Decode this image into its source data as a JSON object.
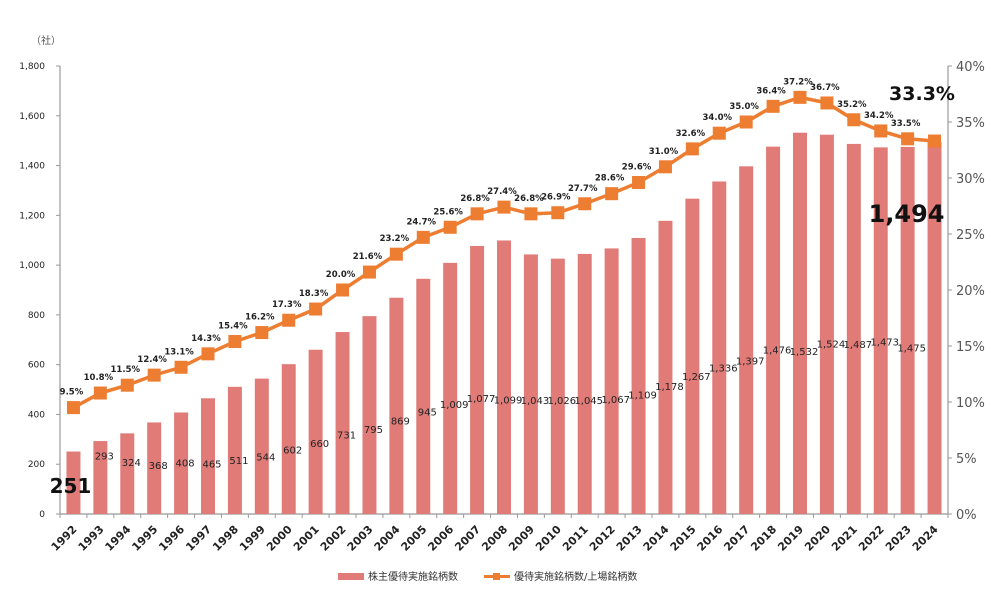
{
  "chart_data": {
    "type": "bar+line",
    "unit_label": "（社）",
    "categories": [
      "1992",
      "1993",
      "1994",
      "1995",
      "1996",
      "1997",
      "1998",
      "1999",
      "2000",
      "2001",
      "2002",
      "2003",
      "2004",
      "2005",
      "2006",
      "2007",
      "2008",
      "2009",
      "2010",
      "2011",
      "2012",
      "2013",
      "2014",
      "2015",
      "2016",
      "2017",
      "2018",
      "2019",
      "2020",
      "2021",
      "2022",
      "2023",
      "2024"
    ],
    "series": [
      {
        "name": "株主優待実施銘柄数",
        "type": "bar",
        "axis": "left",
        "color": "#e07b78",
        "values": [
          251,
          293,
          324,
          368,
          408,
          465,
          511,
          544,
          602,
          660,
          731,
          795,
          869,
          945,
          1009,
          1077,
          1099,
          1043,
          1026,
          1045,
          1067,
          1109,
          1178,
          1267,
          1336,
          1397,
          1476,
          1532,
          1524,
          1487,
          1473,
          1475,
          1494
        ],
        "labels": [
          "251",
          "293",
          "324",
          "368",
          "408",
          "465",
          "511",
          "544",
          "602",
          "660",
          "731",
          "795",
          "869",
          "945",
          "1,009",
          "1,077",
          "1,099",
          "1,043",
          "1,026",
          "1,045",
          "1,067",
          "1,109",
          "1,178",
          "1,267",
          "1,336",
          "1,397",
          "1,476",
          "1,532",
          "1,524",
          "1,487",
          "1,473",
          "1,475",
          "1,494"
        ]
      },
      {
        "name": "優待実施銘柄数/上場銘柄数",
        "type": "line",
        "axis": "right",
        "color": "#ed7d31",
        "values": [
          9.5,
          10.8,
          11.5,
          12.4,
          13.1,
          14.3,
          15.4,
          16.2,
          17.3,
          18.3,
          20.0,
          21.6,
          23.2,
          24.7,
          25.6,
          26.8,
          27.4,
          26.8,
          26.9,
          27.7,
          28.6,
          29.6,
          31.0,
          32.6,
          34.0,
          35.0,
          36.4,
          37.2,
          36.7,
          35.2,
          34.2,
          33.5,
          33.3
        ],
        "labels": [
          "9.5%",
          "10.8%",
          "11.5%",
          "12.4%",
          "13.1%",
          "14.3%",
          "15.4%",
          "16.2%",
          "17.3%",
          "18.3%",
          "20.0%",
          "21.6%",
          "23.2%",
          "24.7%",
          "25.6%",
          "26.8%",
          "27.4%",
          "26.8%",
          "26.9%",
          "27.7%",
          "28.6%",
          "29.6%",
          "31.0%",
          "32.6%",
          "34.0%",
          "35.0%",
          "36.4%",
          "37.2%",
          "36.7%",
          "35.2%",
          "34.2%",
          "33.5%",
          "33.3%"
        ]
      }
    ],
    "left_axis": {
      "ylim": [
        0,
        1800
      ],
      "ticks": [
        "0",
        "200",
        "400",
        "600",
        "800",
        "1,000",
        "1,200",
        "1,400",
        "1,600",
        "1,800"
      ]
    },
    "right_axis": {
      "ylim": [
        0,
        40
      ],
      "ticks": [
        "0%",
        "5%",
        "10%",
        "15%",
        "20%",
        "25%",
        "30%",
        "35%",
        "40%"
      ]
    },
    "grid": false,
    "legend": "bottom"
  }
}
